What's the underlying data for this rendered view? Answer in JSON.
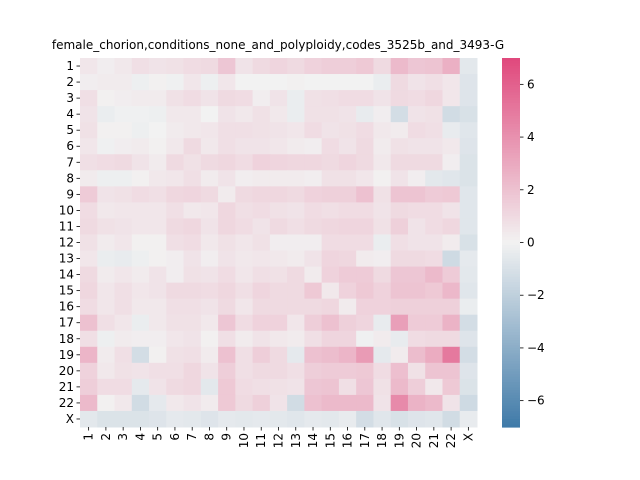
{
  "chart_data": {
    "type": "heatmap",
    "title": "female_chorion,conditions_none_and_polyploidy,codes_3525b_and_3493-G",
    "xlabel": "",
    "ylabel": "",
    "x_labels": [
      "1",
      "2",
      "3",
      "4",
      "5",
      "6",
      "7",
      "8",
      "9",
      "10",
      "11",
      "12",
      "13",
      "14",
      "15",
      "16",
      "17",
      "18",
      "19",
      "20",
      "21",
      "22",
      "X"
    ],
    "y_labels": [
      "1",
      "2",
      "3",
      "4",
      "5",
      "6",
      "7",
      "8",
      "9",
      "10",
      "11",
      "12",
      "13",
      "14",
      "15",
      "16",
      "17",
      "18",
      "19",
      "20",
      "21",
      "22",
      "X"
    ],
    "colorbar": {
      "min": -7,
      "max": 7,
      "ticks": [
        -6,
        -4,
        -2,
        0,
        2,
        4,
        6
      ],
      "colors": {
        "low": "#3f7aa8",
        "mid": "#f2f2f2",
        "high": "#e0487c"
      }
    },
    "values": [
      [
        0.5,
        0.2,
        0.4,
        0.8,
        0.6,
        0.7,
        0.9,
        1.0,
        1.8,
        0.6,
        1.0,
        1.2,
        1.0,
        1.3,
        1.5,
        1.5,
        1.7,
        1.0,
        2.3,
        1.8,
        1.9,
        2.7,
        -0.6
      ],
      [
        0.2,
        0.3,
        0.3,
        -0.2,
        0.1,
        -0.1,
        0.5,
        -0.2,
        0.5,
        0.0,
        0.0,
        0.0,
        0.1,
        0.0,
        0.0,
        0.0,
        0.0,
        -0.3,
        1.0,
        0.6,
        0.8,
        0.5,
        -0.8
      ],
      [
        0.8,
        0.1,
        0.2,
        0.3,
        0.3,
        0.7,
        0.9,
        0.6,
        1.0,
        0.9,
        0.2,
        0.6,
        -0.3,
        0.7,
        0.8,
        0.9,
        0.9,
        0.6,
        1.0,
        0.9,
        1.1,
        0.5,
        -0.8
      ],
      [
        0.6,
        -0.3,
        -0.1,
        -0.1,
        -0.2,
        0.4,
        0.4,
        0.0,
        0.6,
        0.4,
        0.7,
        0.4,
        -0.3,
        0.7,
        0.7,
        0.6,
        -0.4,
        0.2,
        -1.2,
        0.6,
        0.7,
        -1.3,
        -1.0
      ],
      [
        0.7,
        0.1,
        0.1,
        -0.2,
        0.0,
        0.3,
        0.4,
        0.5,
        0.8,
        0.8,
        0.7,
        0.6,
        0.5,
        0.9,
        0.6,
        0.7,
        0.9,
        0.4,
        0.3,
        0.9,
        0.8,
        -0.4,
        -0.7
      ],
      [
        0.5,
        -0.1,
        0.2,
        0.3,
        0.1,
        0.4,
        1.0,
        0.4,
        0.8,
        0.6,
        0.6,
        0.5,
        0.3,
        0.2,
        0.9,
        0.6,
        1.0,
        0.3,
        0.7,
        0.6,
        0.6,
        0.4,
        -0.8
      ],
      [
        0.8,
        0.9,
        1.0,
        0.6,
        0.3,
        1.0,
        0.7,
        1.0,
        1.1,
        0.9,
        1.3,
        1.2,
        1.1,
        1.1,
        1.0,
        1.2,
        1.0,
        0.4,
        1.0,
        1.0,
        1.0,
        0.2,
        -0.9
      ],
      [
        0.3,
        -0.2,
        -0.2,
        0.1,
        0.4,
        0.5,
        0.8,
        0.3,
        0.6,
        0.2,
        0.3,
        0.3,
        0.3,
        0.2,
        0.7,
        0.7,
        0.5,
        0.1,
        0.6,
        0.2,
        -0.6,
        -0.7,
        -0.9
      ],
      [
        1.6,
        0.6,
        0.7,
        0.9,
        0.8,
        1.1,
        1.2,
        1.0,
        0.3,
        1.0,
        1.1,
        1.1,
        1.0,
        1.3,
        1.4,
        1.4,
        2.0,
        0.7,
        1.9,
        1.9,
        1.6,
        1.7,
        -0.7
      ],
      [
        0.9,
        0.4,
        0.5,
        0.5,
        0.5,
        0.8,
        0.4,
        0.5,
        1.1,
        0.8,
        0.9,
        0.7,
        0.6,
        0.9,
        0.8,
        0.9,
        0.9,
        0.6,
        1.0,
        0.9,
        0.9,
        0.6,
        -0.7
      ],
      [
        1.0,
        0.7,
        0.6,
        0.5,
        0.5,
        1.0,
        1.1,
        0.6,
        1.1,
        0.9,
        0.6,
        1.0,
        0.8,
        1.0,
        1.1,
        1.2,
        1.2,
        0.7,
        1.4,
        0.6,
        0.9,
        1.1,
        -0.7
      ],
      [
        0.7,
        0.3,
        0.5,
        0.1,
        0.1,
        0.8,
        0.9,
        0.4,
        0.7,
        0.5,
        0.7,
        0.2,
        0.2,
        0.2,
        0.9,
        0.9,
        0.9,
        -0.3,
        0.8,
        0.6,
        0.6,
        0.3,
        -1.0
      ],
      [
        0.5,
        -0.3,
        -0.4,
        -0.2,
        0.1,
        0.2,
        0.6,
        0.2,
        0.6,
        0.4,
        0.5,
        0.4,
        0.3,
        0.6,
        1.2,
        1.1,
        0.3,
        0.2,
        1.0,
        1.0,
        0.9,
        -1.4,
        -0.5
      ],
      [
        1.0,
        0.3,
        0.5,
        0.3,
        0.6,
        0.2,
        0.7,
        0.6,
        0.9,
        0.5,
        0.8,
        0.7,
        1.0,
        0.3,
        1.3,
        1.6,
        1.6,
        1.0,
        1.8,
        1.8,
        2.3,
        1.6,
        -0.6
      ],
      [
        1.1,
        0.5,
        0.8,
        0.5,
        0.6,
        1.0,
        1.0,
        0.9,
        1.1,
        0.8,
        1.2,
        1.0,
        1.0,
        1.7,
        0.4,
        1.3,
        1.7,
        1.3,
        1.9,
        1.9,
        1.7,
        2.4,
        -0.7
      ],
      [
        0.9,
        0.5,
        0.8,
        0.4,
        0.4,
        0.8,
        0.8,
        0.6,
        1.0,
        0.5,
        1.0,
        1.0,
        1.0,
        1.0,
        1.1,
        0.3,
        1.3,
        1.3,
        1.4,
        1.4,
        1.4,
        1.4,
        -0.3
      ],
      [
        2.0,
        0.8,
        0.5,
        -0.3,
        0.4,
        0.7,
        0.7,
        0.4,
        1.8,
        0.9,
        1.3,
        1.3,
        0.5,
        1.5,
        2.0,
        1.4,
        1.2,
        -0.4,
        3.4,
        1.6,
        1.6,
        2.6,
        -1.2
      ],
      [
        0.8,
        -0.2,
        0.3,
        0.2,
        0.2,
        0.5,
        0.6,
        0.1,
        0.8,
        0.3,
        0.6,
        0.4,
        0.3,
        0.8,
        1.2,
        1.2,
        -0.1,
        0.3,
        -0.4,
        0.9,
        1.0,
        1.0,
        -0.8
      ],
      [
        2.5,
        0.3,
        0.8,
        -1.2,
        0.1,
        0.7,
        0.8,
        0.3,
        2.0,
        0.8,
        1.5,
        1.0,
        -0.5,
        2.0,
        2.2,
        2.5,
        3.6,
        -0.5,
        0.3,
        2.2,
        2.9,
        5.0,
        -1.2
      ],
      [
        1.3,
        0.4,
        0.7,
        0.6,
        0.8,
        0.8,
        1.1,
        0.6,
        1.5,
        0.8,
        1.0,
        1.0,
        0.8,
        1.5,
        1.6,
        1.6,
        1.7,
        0.9,
        2.1,
        0.7,
        1.9,
        1.9,
        -0.8
      ],
      [
        1.5,
        0.9,
        0.9,
        -0.5,
        0.6,
        1.0,
        1.1,
        -0.6,
        1.7,
        0.9,
        0.8,
        0.7,
        0.6,
        1.8,
        1.9,
        0.8,
        1.8,
        0.7,
        2.3,
        1.5,
        0.4,
        1.7,
        -0.9
      ],
      [
        2.3,
        0.1,
        0.4,
        -1.3,
        -0.5,
        0.4,
        0.6,
        0.3,
        1.7,
        1.0,
        1.4,
        0.6,
        -1.3,
        2.0,
        2.3,
        2.3,
        2.3,
        0.6,
        4.3,
        2.6,
        2.3,
        0.6,
        -1.4
      ],
      [
        -0.6,
        -0.9,
        -0.9,
        -0.9,
        -0.8,
        -0.5,
        -0.6,
        -0.8,
        -0.5,
        -0.6,
        -0.5,
        -0.6,
        -0.7,
        -0.5,
        -0.6,
        -0.4,
        -1.2,
        -0.7,
        -1.0,
        -0.8,
        -0.7,
        -1.3,
        -0.4
      ]
    ]
  }
}
